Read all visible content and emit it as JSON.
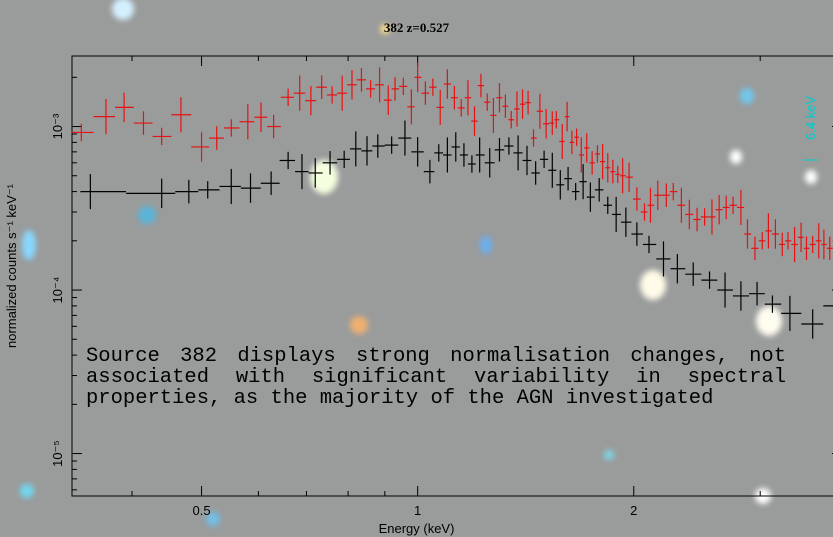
{
  "chart_data": {
    "type": "scatter",
    "title": "382 z=0.527",
    "xlabel": "Energy (keV)",
    "ylabel": "normalized counts s⁻¹ keV⁻¹",
    "xscale": "log",
    "yscale": "log",
    "xlim": [
      0.33,
      3.9
    ],
    "ylim": [
      5.5e-06,
      0.0027
    ],
    "x_ticks": [
      {
        "value": 0.5,
        "label": "0.5"
      },
      {
        "value": 1,
        "label": "1"
      },
      {
        "value": 2,
        "label": "2"
      }
    ],
    "y_ticks": [
      {
        "value": 0.001,
        "label": "10⁻³"
      },
      {
        "value": 0.0001,
        "label": "10⁻⁴"
      },
      {
        "value": 1e-05,
        "label": "10⁻⁵"
      }
    ],
    "annotation": {
      "label": "6.4 keV",
      "x": 3.9,
      "color": "#00cccc"
    },
    "series": [
      {
        "color": "#e81010",
        "points": [
          [
            0.34,
            0.00092
          ],
          [
            0.368,
            0.00115
          ],
          [
            0.39,
            0.00131
          ],
          [
            0.415,
            0.00105
          ],
          [
            0.44,
            0.00087
          ],
          [
            0.468,
            0.00118
          ],
          [
            0.5,
            0.00075
          ],
          [
            0.525,
            0.00085
          ],
          [
            0.55,
            0.00098
          ],
          [
            0.58,
            0.00107
          ],
          [
            0.605,
            0.00114
          ],
          [
            0.63,
            0.001
          ],
          [
            0.66,
            0.00151
          ],
          [
            0.685,
            0.0016
          ],
          [
            0.71,
            0.00144
          ],
          [
            0.735,
            0.00174
          ],
          [
            0.76,
            0.00156
          ],
          [
            0.785,
            0.0016
          ],
          [
            0.81,
            0.0018
          ],
          [
            0.835,
            0.00193
          ],
          [
            0.86,
            0.0017
          ],
          [
            0.885,
            0.0018
          ],
          [
            0.91,
            0.00145
          ],
          [
            0.93,
            0.0017
          ],
          [
            0.955,
            0.00176
          ],
          [
            0.98,
            0.00132
          ],
          [
            1.0,
            0.002
          ],
          [
            1.025,
            0.0016
          ],
          [
            1.05,
            0.00174
          ],
          [
            1.075,
            0.00131
          ],
          [
            1.1,
            0.00182
          ],
          [
            1.125,
            0.0015
          ],
          [
            1.15,
            0.0013
          ],
          [
            1.175,
            0.0015
          ],
          [
            1.2,
            0.00108
          ],
          [
            1.225,
            0.00178
          ],
          [
            1.25,
            0.00141
          ],
          [
            1.275,
            0.00117
          ],
          [
            1.3,
            0.0015
          ],
          [
            1.325,
            0.00133
          ],
          [
            1.35,
            0.0011
          ],
          [
            1.375,
            0.00128
          ],
          [
            1.4,
            0.00137
          ],
          [
            1.425,
            0.0014
          ],
          [
            1.45,
            0.00085
          ],
          [
            1.48,
            0.00124
          ],
          [
            1.51,
            0.00104
          ],
          [
            1.54,
            0.00105
          ],
          [
            1.56,
            0.0011
          ],
          [
            1.59,
            0.00081
          ],
          [
            1.615,
            0.00115
          ],
          [
            1.64,
            0.0008
          ],
          [
            1.665,
            0.00086
          ],
          [
            1.69,
            0.00067
          ],
          [
            1.72,
            0.00074
          ],
          [
            1.75,
            0.0006
          ],
          [
            1.78,
            0.00068
          ],
          [
            1.81,
            0.00061
          ],
          [
            1.84,
            0.00056
          ],
          [
            1.87,
            0.00053
          ],
          [
            1.9,
            0.00051
          ],
          [
            1.93,
            0.0005
          ],
          [
            1.97,
            0.00049
          ],
          [
            2.02,
            0.00036
          ],
          [
            2.07,
            0.0003
          ],
          [
            2.11,
            0.00033
          ],
          [
            2.16,
            0.00038
          ],
          [
            2.22,
            0.00038
          ],
          [
            2.27,
            0.0004
          ],
          [
            2.33,
            0.00033
          ],
          [
            2.39,
            0.00029
          ],
          [
            2.45,
            0.00027
          ],
          [
            2.51,
            0.00028
          ],
          [
            2.57,
            0.00028
          ],
          [
            2.63,
            0.00031
          ],
          [
            2.69,
            0.00032
          ],
          [
            2.75,
            0.00033
          ],
          [
            2.82,
            0.00032
          ],
          [
            2.88,
            0.00022
          ],
          [
            2.95,
            0.00018
          ],
          [
            3.02,
            0.0002
          ],
          [
            3.08,
            0.00023
          ],
          [
            3.15,
            0.00022
          ],
          [
            3.22,
            0.00019
          ],
          [
            3.28,
            0.0002
          ],
          [
            3.35,
            0.00019
          ],
          [
            3.42,
            0.00021
          ],
          [
            3.48,
            0.00018
          ],
          [
            3.55,
            0.00019
          ],
          [
            3.62,
            0.0002
          ],
          [
            3.68,
            0.00019
          ],
          [
            3.75,
            0.00018
          ],
          [
            3.82,
            0.0002
          ],
          [
            3.88,
            0.00019
          ]
        ]
      },
      {
        "color": "#000000",
        "points": [
          [
            0.35,
            0.0004
          ],
          [
            0.44,
            0.00039
          ],
          [
            0.48,
            0.0004
          ],
          [
            0.51,
            0.00041
          ],
          [
            0.55,
            0.00043
          ],
          [
            0.585,
            0.00042
          ],
          [
            0.625,
            0.00045
          ],
          [
            0.66,
            0.00062
          ],
          [
            0.69,
            0.00053
          ],
          [
            0.72,
            0.00052
          ],
          [
            0.755,
            0.0006
          ],
          [
            0.79,
            0.00063
          ],
          [
            0.82,
            0.00073
          ],
          [
            0.85,
            0.00071
          ],
          [
            0.88,
            0.00076
          ],
          [
            0.92,
            0.00077
          ],
          [
            0.96,
            0.00085
          ],
          [
            1.0,
            0.0007
          ],
          [
            1.04,
            0.00053
          ],
          [
            1.07,
            0.00069
          ],
          [
            1.1,
            0.00067
          ],
          [
            1.13,
            0.00075
          ],
          [
            1.16,
            0.00067
          ],
          [
            1.19,
            0.00059
          ],
          [
            1.22,
            0.00067
          ],
          [
            1.26,
            0.0006
          ],
          [
            1.3,
            0.00072
          ],
          [
            1.34,
            0.00076
          ],
          [
            1.38,
            0.00069
          ],
          [
            1.42,
            0.00062
          ],
          [
            1.46,
            0.00052
          ],
          [
            1.5,
            0.00063
          ],
          [
            1.54,
            0.00054
          ],
          [
            1.58,
            0.00044
          ],
          [
            1.62,
            0.00048
          ],
          [
            1.66,
            0.0004
          ],
          [
            1.7,
            0.00046
          ],
          [
            1.74,
            0.00037
          ],
          [
            1.79,
            0.00041
          ],
          [
            1.84,
            0.00033
          ],
          [
            1.89,
            0.00029
          ],
          [
            1.95,
            0.00026
          ],
          [
            2.02,
            0.00022
          ],
          [
            2.1,
            0.00019
          ],
          [
            2.2,
            0.000155
          ],
          [
            2.3,
            0.000135
          ],
          [
            2.42,
            0.000125
          ],
          [
            2.55,
            0.000115
          ],
          [
            2.68,
            0.0001
          ],
          [
            2.82,
            9.2e-05
          ],
          [
            2.97,
            9.5e-05
          ],
          [
            3.12,
            8.2e-05
          ],
          [
            3.3,
            7.2e-05
          ],
          [
            3.55,
            6.2e-05
          ],
          [
            3.8,
            8e-05
          ]
        ]
      }
    ]
  },
  "caption": "Source 382 displays strong normalisation changes, not associated with significant variability in spectral properties, as the majority of the AGN investigated"
}
